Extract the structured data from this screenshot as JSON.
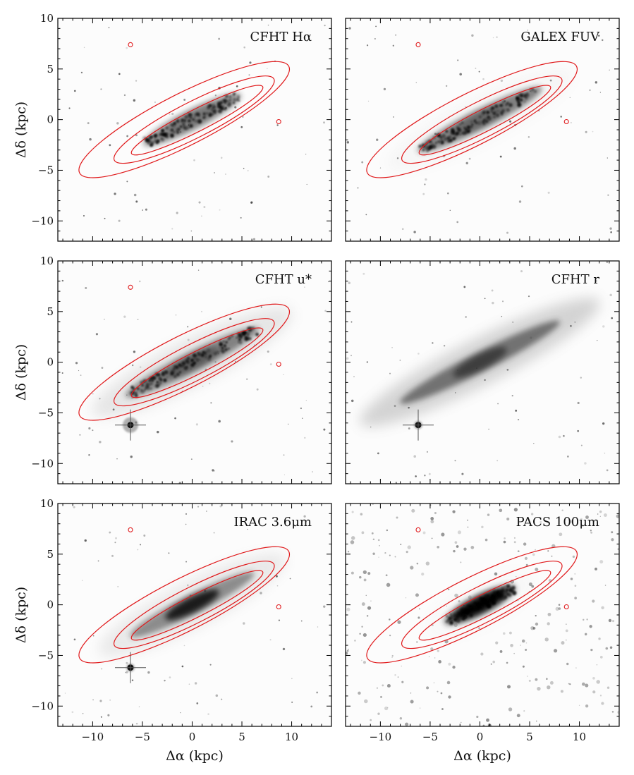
{
  "figure": {
    "xlabel": "Δα (kpc)",
    "ylabel": "Δδ (kpc)",
    "contour_color": "#e0191b",
    "galaxy_center": [
      0,
      0
    ],
    "galaxy_pa_deg": 153,
    "ext_stars": [
      {
        "x": -6.2,
        "y": 7.4
      },
      {
        "x": 8.7,
        "y": -0.2
      }
    ],
    "bright_star": {
      "x": -6.2,
      "y": -6.2
    },
    "contour_levels": [
      {
        "level": "outer",
        "a": 11.8,
        "b": 2.6,
        "dx": -0.8,
        "dy": 0.0
      },
      {
        "level": "middle",
        "a": 9.0,
        "b": 1.8,
        "dx": 0.2,
        "dy": 0.0
      },
      {
        "level": "inner",
        "a": 7.4,
        "b": 1.1,
        "dx": 0.5,
        "dy": -0.05
      }
    ]
  },
  "chart_data": [
    {
      "type": "image",
      "label": "CFHT Hα",
      "contours": true,
      "xlim": [
        -13.5,
        14
      ],
      "ylim": [
        -12,
        10
      ],
      "xticks": [
        -10,
        -5,
        0,
        5,
        10
      ],
      "yticks": [
        -10,
        -5,
        0,
        5,
        10
      ],
      "xticklabels": [
        "",
        "",
        "",
        "",
        ""
      ],
      "yticklabels": [
        "−10",
        "−5",
        "0",
        "5",
        "10"
      ],
      "ylabel": "Δδ (kpc)",
      "xlabel": "",
      "emission": {
        "halo": 0.0,
        "disk": 0.55,
        "core": 0.15,
        "clumpy": true,
        "extent": 5.5
      }
    },
    {
      "type": "image",
      "label": "GALEX FUV",
      "contours": true,
      "xlim": [
        -13.5,
        14
      ],
      "ylim": [
        -12,
        10
      ],
      "xticks": [
        -10,
        -5,
        0,
        5,
        10
      ],
      "yticks": [
        -10,
        -5,
        0,
        5,
        10
      ],
      "xticklabels": [
        "",
        "",
        "",
        "",
        ""
      ],
      "yticklabels": [
        "",
        "",
        "",
        "",
        ""
      ],
      "ylabel": "",
      "xlabel": "",
      "emission": {
        "halo": 0.08,
        "disk": 0.6,
        "core": 0.2,
        "clumpy": true,
        "extent": 7.0
      }
    },
    {
      "type": "image",
      "label": "CFHT u*",
      "contours": true,
      "xlim": [
        -13.5,
        14
      ],
      "ylim": [
        -12,
        10
      ],
      "xticks": [
        -10,
        -5,
        0,
        5,
        10
      ],
      "yticks": [
        -10,
        -5,
        0,
        5,
        10
      ],
      "xticklabels": [
        "",
        "",
        "",
        "",
        ""
      ],
      "yticklabels": [
        "−10",
        "−5",
        "0",
        "5",
        "10"
      ],
      "ylabel": "Δδ (kpc)",
      "xlabel": "",
      "emission": {
        "halo": 0.3,
        "disk": 0.55,
        "core": 0.3,
        "clumpy": true,
        "extent": 7.5
      }
    },
    {
      "type": "image",
      "label": "CFHT r",
      "contours": false,
      "xlim": [
        -13.5,
        14
      ],
      "ylim": [
        -12,
        10
      ],
      "xticks": [
        -10,
        -5,
        0,
        5,
        10
      ],
      "yticks": [
        -10,
        -5,
        0,
        5,
        10
      ],
      "xticklabels": [
        "",
        "",
        "",
        "",
        ""
      ],
      "yticklabels": [
        "",
        "",
        "",
        "",
        ""
      ],
      "ylabel": "",
      "xlabel": "",
      "emission": {
        "halo": 0.55,
        "disk": 0.6,
        "core": 0.45,
        "clumpy": false,
        "extent": 9.0
      }
    },
    {
      "type": "image",
      "label": "IRAC 3.6μm",
      "contours": true,
      "xlim": [
        -13.5,
        14
      ],
      "ylim": [
        -12,
        10
      ],
      "xticks": [
        -10,
        -5,
        0,
        5,
        10
      ],
      "yticks": [
        -10,
        -5,
        0,
        5,
        10
      ],
      "xticklabels": [
        "−10",
        "−5",
        "0",
        "5",
        "10"
      ],
      "yticklabels": [
        "−10",
        "−5",
        "0",
        "5",
        "10"
      ],
      "ylabel": "Δδ (kpc)",
      "xlabel": "Δα (kpc)",
      "emission": {
        "halo": 0.25,
        "disk": 0.5,
        "core": 0.8,
        "clumpy": false,
        "extent": 7.0
      }
    },
    {
      "type": "image",
      "label": "PACS 100μm",
      "contours": true,
      "xlim": [
        -13.5,
        14
      ],
      "ylim": [
        -12,
        10
      ],
      "xticks": [
        -10,
        -5,
        0,
        5,
        10
      ],
      "yticks": [
        -10,
        -5,
        0,
        5,
        10
      ],
      "xticklabels": [
        "−10",
        "−5",
        "0",
        "5",
        "10"
      ],
      "yticklabels": [
        "",
        "",
        "",
        "",
        ""
      ],
      "ylabel": "",
      "xlabel": "Δα (kpc)",
      "emission": {
        "halo": 0.05,
        "disk": 0.7,
        "core": 0.95,
        "clumpy": true,
        "extent": 4.0
      }
    }
  ]
}
